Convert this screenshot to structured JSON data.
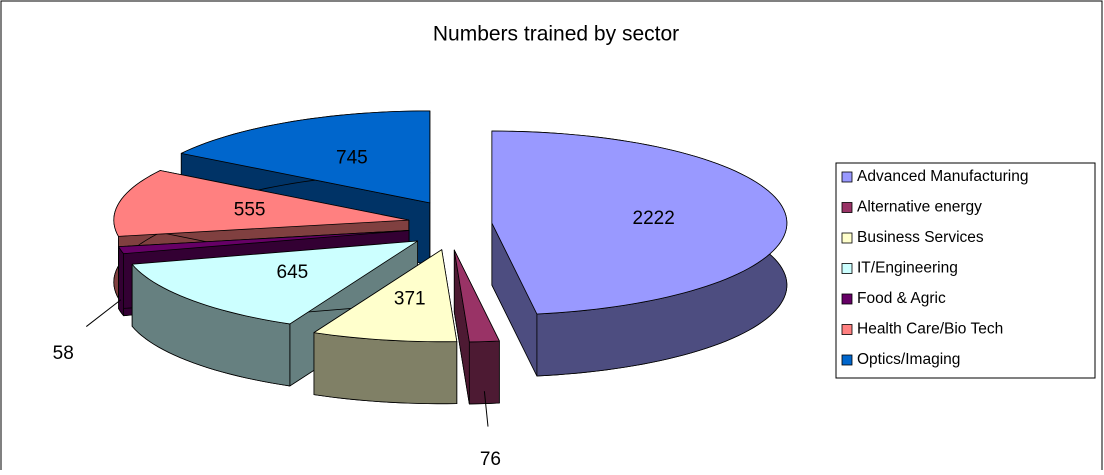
{
  "chart_data": {
    "type": "pie3d",
    "title": "Numbers trained by sector",
    "categories": [
      "Advanced Manufacturing",
      "Alternative energy",
      "Business Services",
      "IT/Engineering",
      "Food & Agric",
      "Health Care/Bio Tech",
      "Optics/Imaging"
    ],
    "values": [
      2222,
      76,
      371,
      645,
      58,
      555,
      745
    ],
    "colors": [
      "#9999ff",
      "#993366",
      "#ffffcc",
      "#ccffff",
      "#660066",
      "#ff8080",
      "#0066cc"
    ],
    "legend": "right"
  }
}
